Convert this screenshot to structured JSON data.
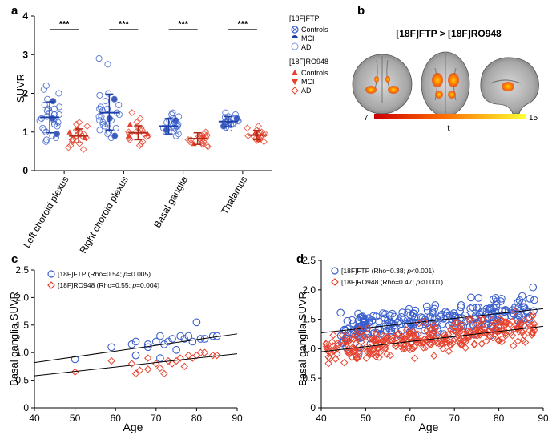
{
  "panel_labels": {
    "a": "a",
    "b": "b",
    "c": "c",
    "d": "d"
  },
  "colors": {
    "ftp": "#3a5fcd",
    "ro": "#e8412c",
    "axis": "#000000",
    "ftp_mean": "#1d3fa8",
    "ro_mean": "#b02a17"
  },
  "panel_b": {
    "title": "[18F]FTP > [18F]RO948",
    "colorbar_min": "7",
    "colorbar_max": "15",
    "colorbar_label": "t"
  },
  "chart_data": [
    {
      "id": "a",
      "type": "scatter",
      "title": "",
      "xlabel": "",
      "ylabel": "SUVR",
      "ylim": [
        0,
        4
      ],
      "yticks": [
        "0",
        "1",
        "2",
        "3",
        "4"
      ],
      "categories": [
        "Left choroid plexus",
        "Right choroid plexus",
        "Basal ganglia",
        "Thalamus"
      ],
      "significance": [
        "***",
        "***",
        "***",
        "***"
      ],
      "legend": {
        "ftp_title": "[18F]FTP",
        "ftp_items": [
          "Controls",
          "MCI",
          "AD"
        ],
        "ro_title": "[18F]RO948",
        "ro_items": [
          "Controls",
          "MCI",
          "AD"
        ]
      },
      "series": [
        {
          "name": "[18F]FTP",
          "mean": [
            1.38,
            1.5,
            1.15,
            1.27
          ],
          "sd_low": [
            0.98,
            1.05,
            0.95,
            1.14
          ],
          "sd_high": [
            1.78,
            1.98,
            1.35,
            1.4
          ],
          "values": [
            [
              2.2,
              2.1,
              2.0,
              1.85,
              1.8,
              1.7,
              1.65,
              1.6,
              1.55,
              1.5,
              1.45,
              1.45,
              1.4,
              1.35,
              1.3,
              1.3,
              1.25,
              1.2,
              1.15,
              1.1,
              1.05,
              1.0,
              0.95,
              0.9,
              0.85,
              0.8,
              0.75,
              1.6,
              1.35,
              1.2
            ],
            [
              2.9,
              2.75,
              2.0,
              1.95,
              1.85,
              1.8,
              1.7,
              1.65,
              1.6,
              1.55,
              1.5,
              1.45,
              1.4,
              1.35,
              1.3,
              1.25,
              1.2,
              1.15,
              1.1,
              1.05,
              1.0,
              0.95,
              0.9,
              0.85,
              1.6,
              1.4,
              1.3,
              1.2
            ],
            [
              1.5,
              1.45,
              1.4,
              1.35,
              1.3,
              1.25,
              1.2,
              1.2,
              1.15,
              1.15,
              1.1,
              1.1,
              1.05,
              1.05,
              1.0,
              1.0,
              0.95,
              0.9,
              1.25,
              1.15,
              1.1,
              1.3
            ],
            [
              1.5,
              1.45,
              1.4,
              1.38,
              1.35,
              1.32,
              1.3,
              1.28,
              1.26,
              1.24,
              1.22,
              1.2,
              1.18,
              1.15,
              1.12,
              1.1,
              1.3,
              1.25,
              1.2,
              1.35,
              1.28
            ]
          ]
        },
        {
          "name": "[18F]RO948",
          "mean": [
            0.9,
            0.98,
            0.83,
            0.92
          ],
          "sd_low": [
            0.72,
            0.8,
            0.68,
            0.8
          ],
          "sd_high": [
            1.08,
            1.16,
            0.98,
            1.04
          ],
          "values": [
            [
              1.25,
              1.2,
              1.15,
              1.1,
              1.05,
              1.0,
              0.95,
              0.95,
              0.9,
              0.9,
              0.85,
              0.85,
              0.8,
              0.8,
              0.75,
              0.7,
              0.65,
              0.6,
              0.55,
              1.0,
              0.9,
              0.8
            ],
            [
              1.5,
              1.35,
              1.25,
              1.2,
              1.15,
              1.1,
              1.05,
              1.0,
              1.0,
              0.95,
              0.95,
              0.9,
              0.9,
              0.85,
              0.8,
              0.75,
              0.7,
              0.65,
              1.05,
              0.95,
              0.88
            ],
            [
              1.0,
              0.95,
              0.92,
              0.9,
              0.88,
              0.85,
              0.83,
              0.8,
              0.78,
              0.75,
              0.72,
              0.7,
              0.68,
              0.65,
              0.62,
              0.85,
              0.8,
              0.75,
              0.9
            ],
            [
              1.15,
              1.1,
              1.05,
              1.0,
              0.98,
              0.95,
              0.93,
              0.9,
              0.88,
              0.85,
              0.82,
              0.8,
              0.78,
              0.75,
              0.95,
              0.9,
              1.0,
              0.85
            ]
          ]
        }
      ]
    },
    {
      "id": "c",
      "type": "scatter",
      "title": "",
      "xlabel": "Age",
      "ylabel": "Basal ganglia SUVR",
      "xlim": [
        40,
        90
      ],
      "ylim": [
        0,
        2.5
      ],
      "xticks": [
        "40",
        "50",
        "60",
        "70",
        "80",
        "90"
      ],
      "yticks": [
        "0",
        "0.5",
        "1.0",
        "1.5",
        "2.0",
        "2.5"
      ],
      "series": [
        {
          "name": "[18F]FTP",
          "legend_prefix": "[18F]FTP (Rho=0.54; ",
          "legend_p": "p",
          "legend_suffix": "=0.005)",
          "fit": [
            [
              40,
              0.82
            ],
            [
              90,
              1.34
            ]
          ],
          "points": [
            [
              50,
              0.88
            ],
            [
              59,
              1.1
            ],
            [
              64,
              1.15
            ],
            [
              65,
              1.2
            ],
            [
              65,
              0.95
            ],
            [
              68,
              1.1
            ],
            [
              68,
              1.15
            ],
            [
              70,
              1.2
            ],
            [
              71,
              1.3
            ],
            [
              72,
              1.15
            ],
            [
              74,
              1.25
            ],
            [
              75,
              1.05
            ],
            [
              76,
              1.3
            ],
            [
              77,
              1.25
            ],
            [
              78,
              1.3
            ],
            [
              79,
              1.2
            ],
            [
              80,
              1.55
            ],
            [
              81,
              1.25
            ],
            [
              82,
              1.25
            ],
            [
              84,
              1.3
            ],
            [
              85,
              1.3
            ],
            [
              71,
              0.9
            ],
            [
              73,
              1.2
            ]
          ]
        },
        {
          "name": "[18F]RO948",
          "legend_prefix": "[18F]RO948 (Rho=0.55; ",
          "legend_p": "p",
          "legend_suffix": "=0.004)",
          "fit": [
            [
              40,
              0.58
            ],
            [
              90,
              0.98
            ]
          ],
          "points": [
            [
              50,
              0.65
            ],
            [
              59,
              0.85
            ],
            [
              64,
              0.8
            ],
            [
              65,
              0.62
            ],
            [
              66,
              0.68
            ],
            [
              68,
              0.7
            ],
            [
              68,
              0.9
            ],
            [
              70,
              0.8
            ],
            [
              72,
              0.62
            ],
            [
              73,
              0.85
            ],
            [
              74,
              0.8
            ],
            [
              75,
              0.85
            ],
            [
              76,
              0.9
            ],
            [
              77,
              0.75
            ],
            [
              78,
              0.95
            ],
            [
              79,
              0.9
            ],
            [
              80,
              0.95
            ],
            [
              81,
              1.0
            ],
            [
              82,
              1.0
            ],
            [
              84,
              0.95
            ],
            [
              85,
              0.95
            ],
            [
              71,
              0.72
            ]
          ]
        }
      ]
    },
    {
      "id": "d",
      "type": "scatter",
      "title": "",
      "xlabel": "Age",
      "ylabel": "Basal ganglia SUVR",
      "xlim": [
        40,
        90
      ],
      "ylim": [
        0,
        2.5
      ],
      "xticks": [
        "40",
        "50",
        "60",
        "70",
        "80",
        "90"
      ],
      "yticks": [
        "0",
        "0.5",
        "1.0",
        "1.5",
        "2.0",
        "2.5"
      ],
      "series": [
        {
          "name": "[18F]FTP",
          "legend_prefix": "[18F]FTP (Rho=0.38; ",
          "legend_p": "p",
          "legend_suffix": "<0.001)",
          "fit": [
            [
              40,
              1.27
            ],
            [
              90,
              1.68
            ]
          ],
          "center": 1.5,
          "spread": 0.25,
          "n": 260,
          "age_min": 44,
          "age_max": 88
        },
        {
          "name": "[18F]RO948",
          "legend_prefix": "[18F]RO948 (Rho=0.47; ",
          "legend_p": "p",
          "legend_suffix": "<0.001)",
          "fit": [
            [
              40,
              0.95
            ],
            [
              90,
              1.38
            ]
          ],
          "center": 1.15,
          "spread": 0.2,
          "n": 320,
          "age_min": 41,
          "age_max": 88
        }
      ]
    }
  ]
}
